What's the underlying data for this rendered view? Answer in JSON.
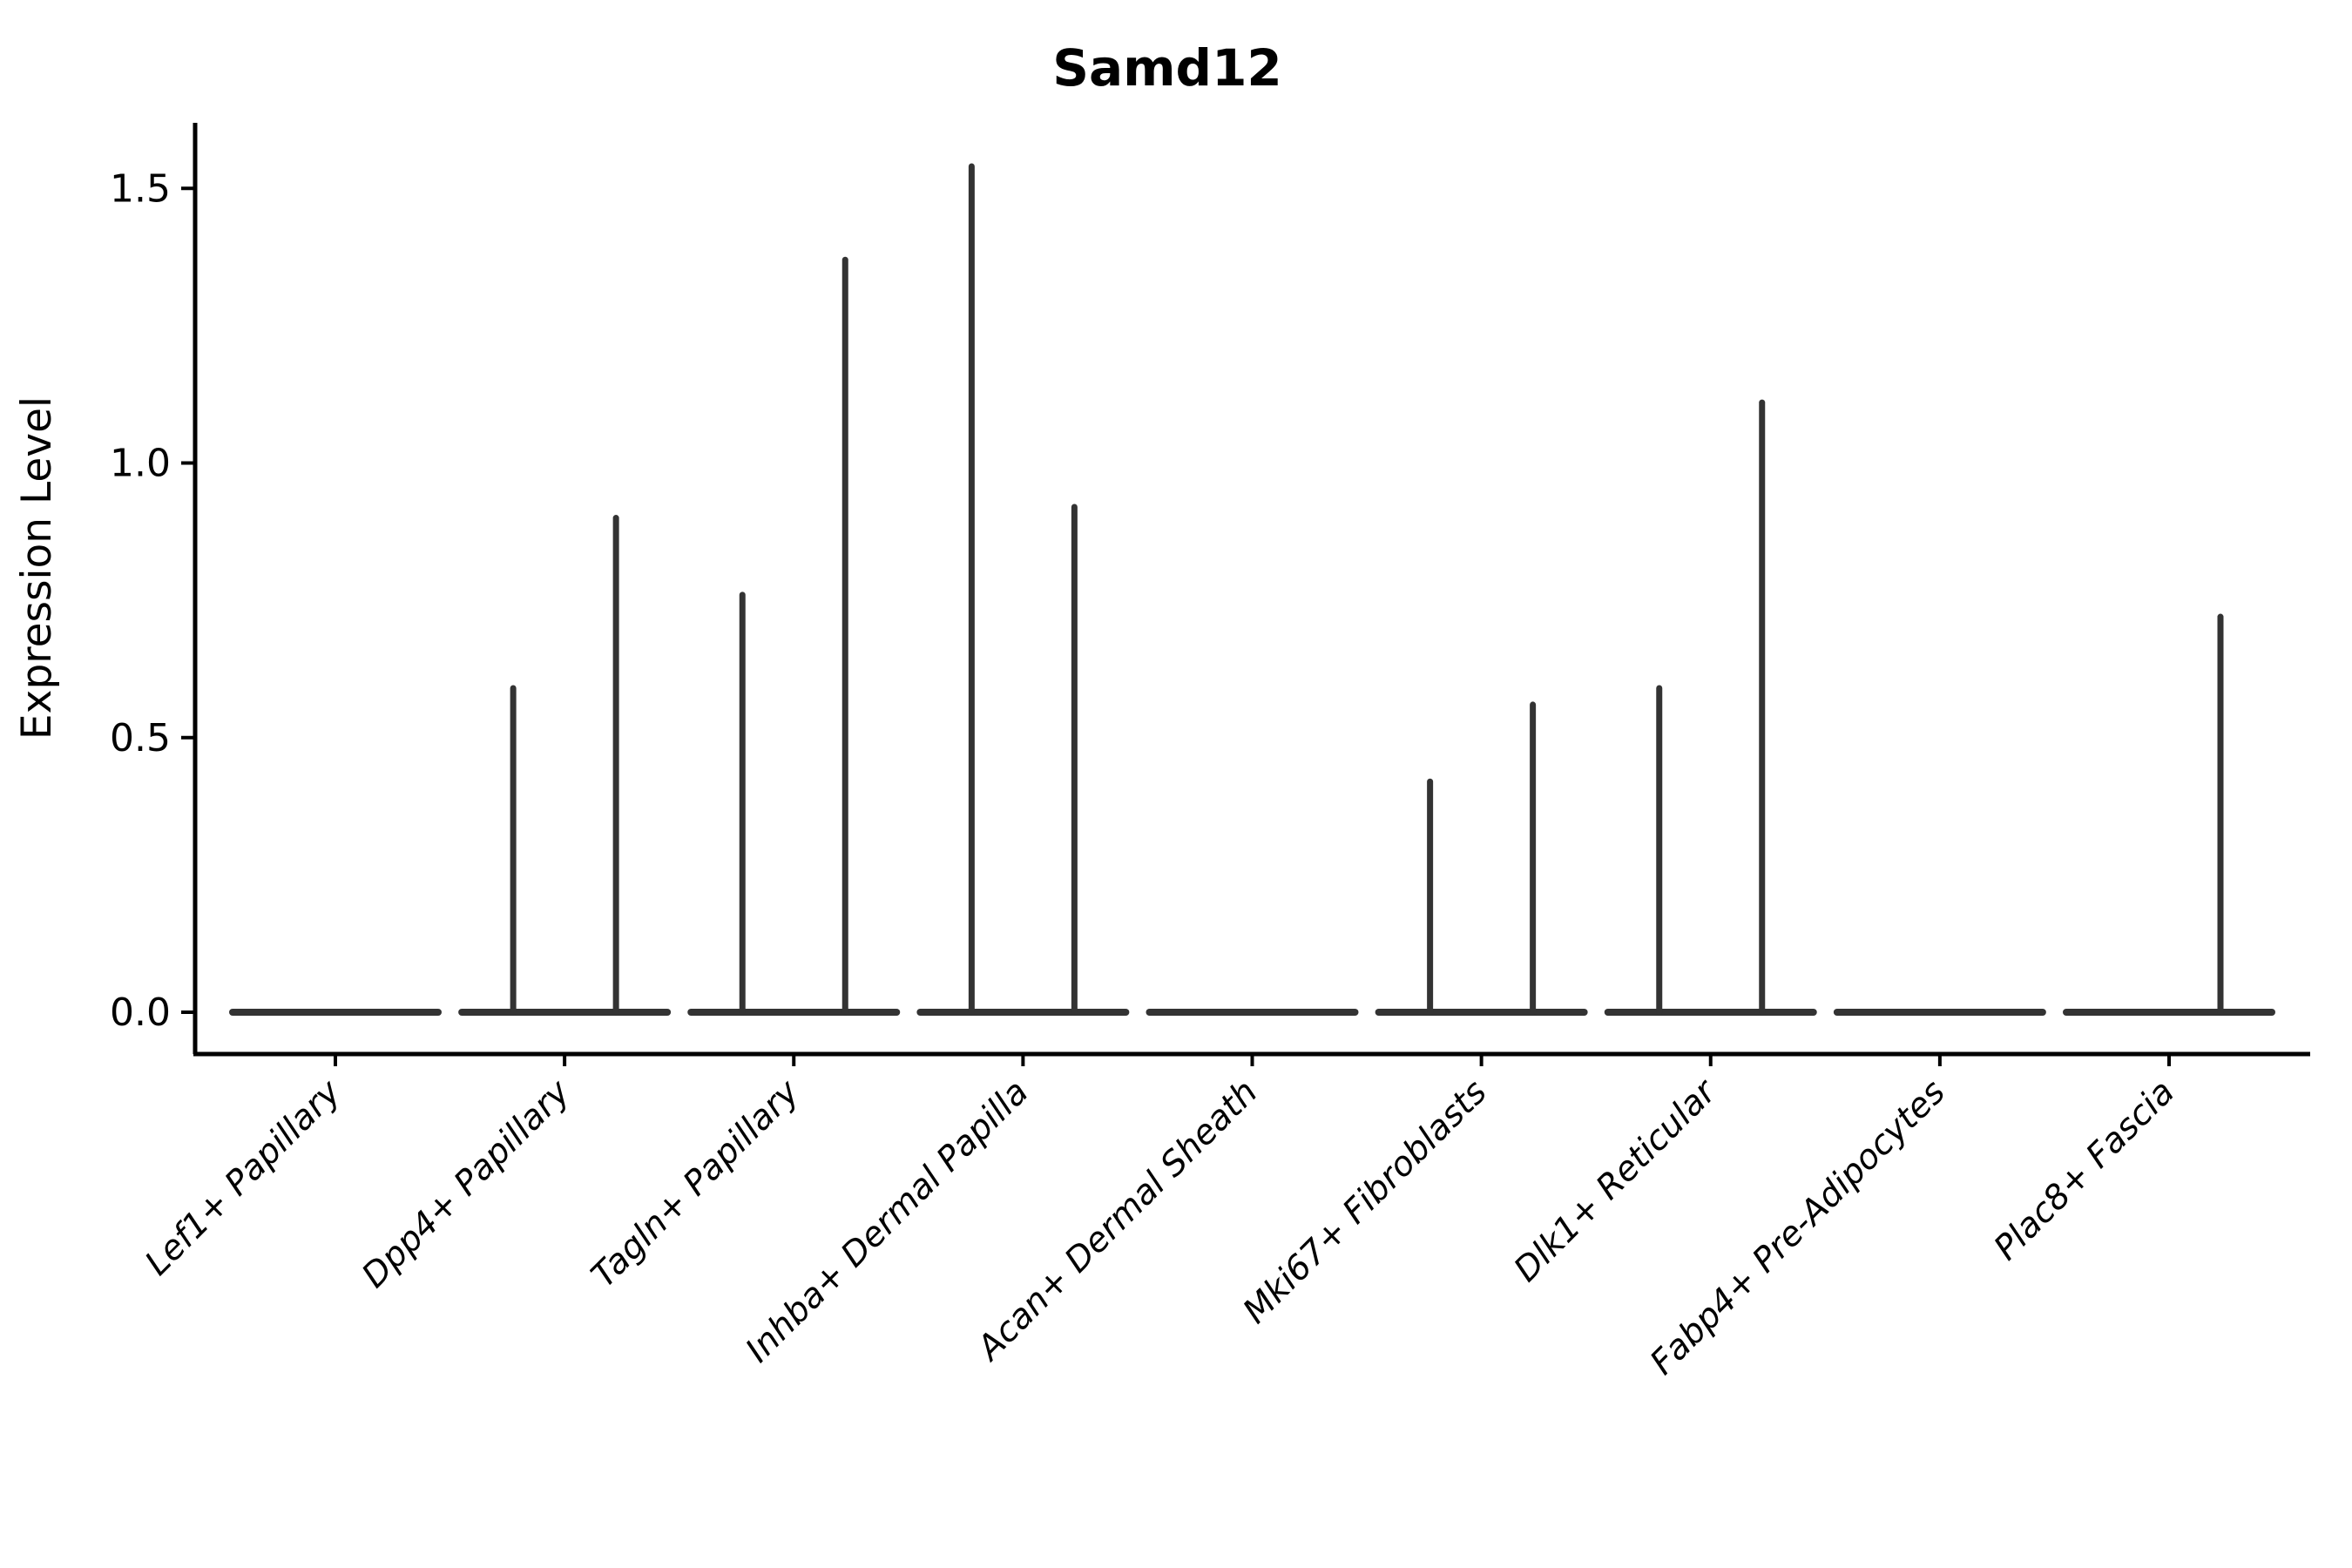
{
  "page": {
    "background_color": "#ffffff",
    "axis_color": "#000000",
    "violin_color": "#333333"
  },
  "chart_data": {
    "type": "violin",
    "title": "Samd12",
    "xlabel": "",
    "ylabel": "Expression Level",
    "grid": false,
    "legend": null,
    "ylim": [
      -0.076,
      1.62
    ],
    "yticks": [
      {
        "value": 0.0,
        "label": "0.0"
      },
      {
        "value": 0.5,
        "label": "0.5"
      },
      {
        "value": 1.0,
        "label": "1.0"
      },
      {
        "value": 1.5,
        "label": "1.5"
      }
    ],
    "x_tick_style": {
      "rotation_deg": 45,
      "italic": true,
      "align": "right"
    },
    "violins_per_category": 2,
    "violin_shape_note": "each violin is a flat horizontal bar at expression 0 with a thin vertical density spike up to the group max; 0 means no spike",
    "categories": [
      {
        "label": "Lef1+ Papillary",
        "violin_max": [
          0,
          0
        ]
      },
      {
        "label": "Dpp4+ Papillary",
        "violin_max": [
          0.59,
          0.9
        ]
      },
      {
        "label": "Tagln+ Papillary",
        "violin_max": [
          0.76,
          1.37
        ]
      },
      {
        "label": "Inhba+ Dermal Papilla",
        "violin_max": [
          1.54,
          0.92
        ]
      },
      {
        "label": "Acan+ Dermal Sheath",
        "violin_max": [
          0,
          0
        ]
      },
      {
        "label": "Mki67+ Fibroblasts",
        "violin_max": [
          0.42,
          0.56
        ]
      },
      {
        "label": "Dlk1+ Reticular",
        "violin_max": [
          0.59,
          1.11
        ]
      },
      {
        "label": "Fabp4+ Pre-Adipocytes",
        "violin_max": [
          0,
          0
        ]
      },
      {
        "label": "Plac8+ Fascia",
        "violin_max": [
          0,
          0.72
        ]
      }
    ]
  }
}
